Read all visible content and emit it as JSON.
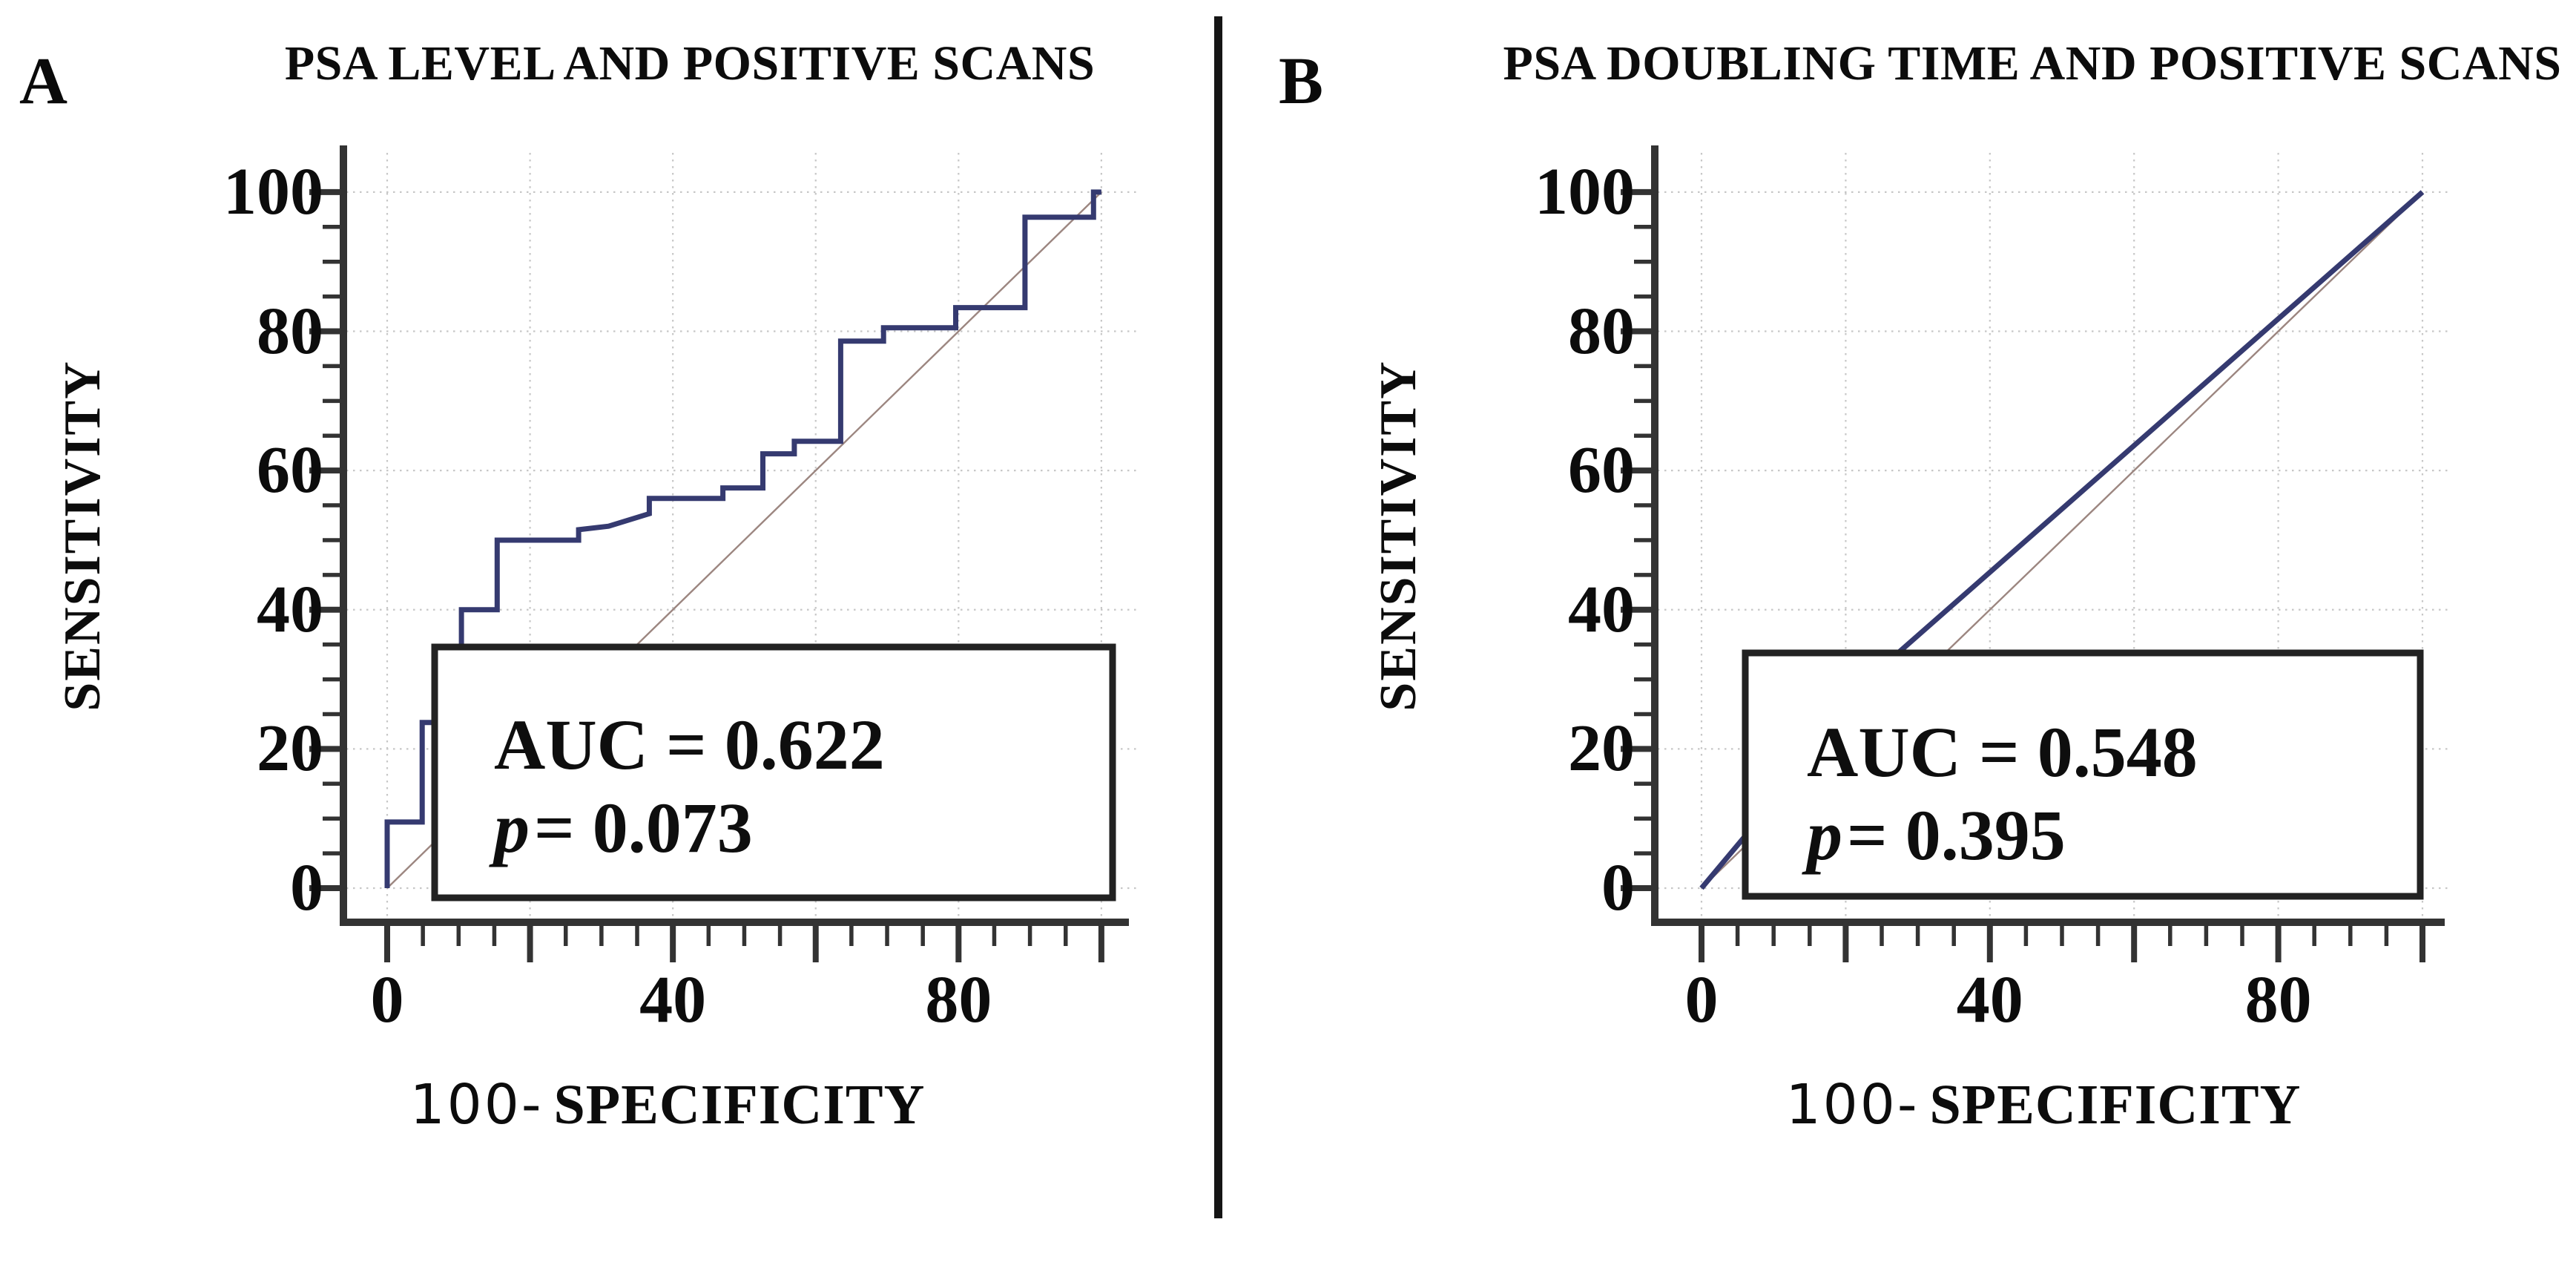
{
  "style": {
    "background": "#ffffff",
    "curve_color": "#353a70",
    "reference_line_color": "#9c8680",
    "grid_color": "#c7c7c7",
    "axis_color": "#333333",
    "annotation_border_color": "#222222",
    "annotation_fill": "#ffffff",
    "text_color": "#0c0c0c",
    "divider_color": "#151515"
  },
  "chart_data": [
    {
      "type": "line",
      "panel_label": "A",
      "title": "PSA LEVEL AND POSITIVE SCANS",
      "ylabel": "SENSITIVITY",
      "xlabel_prefix": "100-",
      "xlabel_main": "SPECIFICITY",
      "xlim": [
        0,
        100
      ],
      "ylim": [
        0,
        100
      ],
      "x_major_ticks": [
        0,
        20,
        40,
        60,
        80,
        100
      ],
      "y_major_ticks": [
        0,
        20,
        40,
        60,
        80,
        100
      ],
      "x_ticks_labeled": [
        0,
        40,
        80
      ],
      "y_ticks_labeled": [
        0,
        20,
        40,
        60,
        80,
        100
      ],
      "minor_tick_step": 5,
      "grid": "dotted every 20 units",
      "legend_position": "none",
      "reference_line": [
        [
          0,
          0
        ],
        [
          100,
          100
        ]
      ],
      "roc_points": [
        [
          0,
          0
        ],
        [
          0,
          9.5
        ],
        [
          4.9,
          9.5
        ],
        [
          4.9,
          23.8
        ],
        [
          7.2,
          23.8
        ],
        [
          7.2,
          28.6
        ],
        [
          9,
          28.6
        ],
        [
          9,
          33.3
        ],
        [
          10.4,
          33.3
        ],
        [
          10.4,
          40
        ],
        [
          15.4,
          40
        ],
        [
          15.4,
          50
        ],
        [
          26.8,
          50
        ],
        [
          26.8,
          51.5
        ],
        [
          31,
          52
        ],
        [
          36.7,
          53.8
        ],
        [
          36.7,
          56
        ],
        [
          47,
          56
        ],
        [
          47,
          57.5
        ],
        [
          52.6,
          57.5
        ],
        [
          52.6,
          62.4
        ],
        [
          57,
          62.4
        ],
        [
          57,
          64.2
        ],
        [
          63.5,
          64.2
        ],
        [
          63.5,
          78.6
        ],
        [
          69.5,
          78.6
        ],
        [
          69.5,
          80.5
        ],
        [
          79.6,
          80.5
        ],
        [
          79.6,
          83.4
        ],
        [
          89.3,
          83.4
        ],
        [
          89.3,
          96.4
        ],
        [
          98.9,
          96.4
        ],
        [
          98.9,
          100
        ],
        [
          100,
          100
        ]
      ],
      "annotation": {
        "auc_text": "AUC = 0.622",
        "auc_value": 0.622,
        "p_symbol": "p",
        "p_rest": "= 0.073",
        "p_value": 0.073
      }
    },
    {
      "type": "line",
      "panel_label": "B",
      "title": "PSA DOUBLING TIME AND POSITIVE SCANS",
      "ylabel": "SENSITIVITY",
      "xlabel_prefix": "100-",
      "xlabel_main": "SPECIFICITY",
      "xlim": [
        0,
        100
      ],
      "ylim": [
        0,
        100
      ],
      "x_major_ticks": [
        0,
        20,
        40,
        60,
        80,
        100
      ],
      "y_major_ticks": [
        0,
        20,
        40,
        60,
        80,
        100
      ],
      "x_ticks_labeled": [
        0,
        40,
        80
      ],
      "y_ticks_labeled": [
        0,
        20,
        40,
        60,
        80,
        100
      ],
      "minor_tick_step": 5,
      "grid": "dotted every 20 units",
      "legend_position": "none",
      "reference_line": [
        [
          0,
          0
        ],
        [
          100,
          100
        ]
      ],
      "roc_points": [
        [
          0,
          0
        ],
        [
          27.5,
          34
        ],
        [
          100,
          100
        ]
      ],
      "annotation": {
        "auc_text": "AUC = 0.548",
        "auc_value": 0.548,
        "p_symbol": "p",
        "p_rest": "= 0.395",
        "p_value": 0.395
      }
    }
  ]
}
